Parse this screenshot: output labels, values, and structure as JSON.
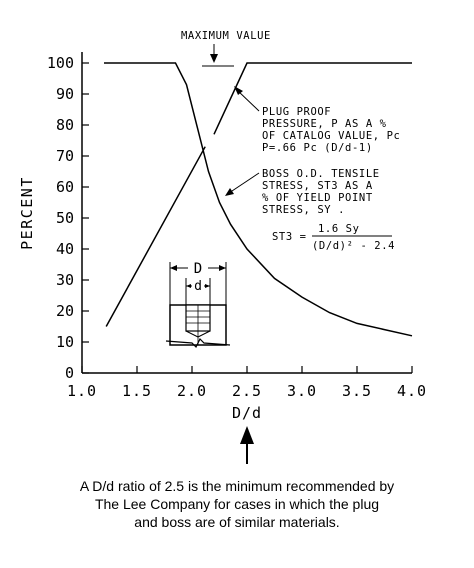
{
  "chart_data": {
    "type": "line",
    "title": "",
    "xlabel": "D/d",
    "ylabel": "PERCENT",
    "xlim": [
      1.0,
      4.0
    ],
    "ylim": [
      0,
      100
    ],
    "x_ticks": [
      "1.0",
      "1.5",
      "2.0",
      "2.5",
      "3.0",
      "3.5",
      "4.0"
    ],
    "y_ticks": [
      "0",
      "10",
      "20",
      "30",
      "40",
      "50",
      "60",
      "70",
      "80",
      "90",
      "100"
    ],
    "grid": false,
    "legend": "none",
    "series": [
      {
        "id": "plug",
        "points": [
          [
            1.22,
            15
          ],
          [
            2.12,
            73
          ]
        ],
        "points_upper": [
          [
            2.2,
            77
          ],
          [
            2.5,
            100
          ],
          [
            4.0,
            100
          ]
        ]
      },
      {
        "id": "boss",
        "points": [
          [
            1.2,
            100
          ],
          [
            1.85,
            100
          ],
          [
            1.95,
            93
          ],
          [
            2.05,
            79
          ],
          [
            2.15,
            65
          ],
          [
            2.25,
            55
          ],
          [
            2.35,
            48
          ],
          [
            2.5,
            40
          ],
          [
            2.75,
            30.5
          ],
          [
            3.0,
            24.5
          ],
          [
            3.25,
            19.5
          ],
          [
            3.5,
            16
          ],
          [
            3.75,
            14
          ],
          [
            4.0,
            12
          ]
        ]
      }
    ],
    "annotations": {
      "max_value": "MAXIMUM VALUE",
      "plug_label": [
        "PLUG PROOF",
        "PRESSURE, P AS A %",
        "OF CATALOG VALUE, Pc",
        "P=.66 Pc (D/d-1)"
      ],
      "boss_label": [
        "BOSS O.D. TENSILE",
        "STRESS, ST3 AS A",
        "% OF YIELD POINT",
        "STRESS, SY ."
      ],
      "formula_lhs": "ST3 =",
      "formula_num": "1.6 Sy",
      "formula_den": "(D/d)² - 2.4",
      "diagram_D": "D",
      "diagram_d": "d"
    }
  },
  "caption": {
    "line1": "A D/d ratio of 2.5 is the minimum recommended by",
    "line2": "The Lee Company for cases in which the plug",
    "line3": "and boss are of similar materials."
  }
}
